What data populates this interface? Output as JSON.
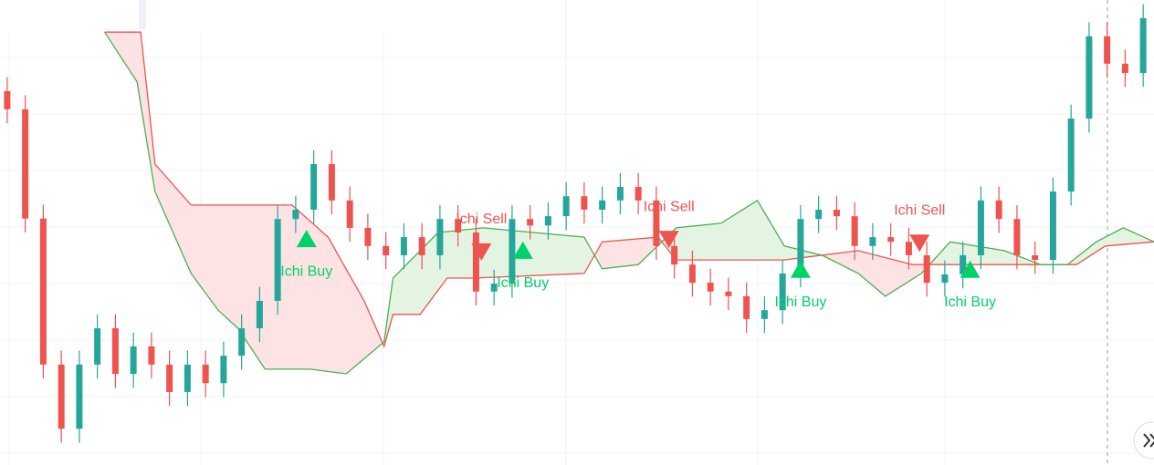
{
  "chart_data": {
    "type": "candlestick",
    "xlim": [
      -0.4,
      63.6
    ],
    "ylim": [
      0,
      100
    ],
    "up_color": "#26a69a",
    "down_color": "#ef5350",
    "open": [
      80.4,
      76.5,
      53,
      21.6,
      7.8,
      21.6,
      29.4,
      19.6,
      25.5,
      21.6,
      15.7,
      21.6,
      17.6,
      23.5,
      29.4,
      35.3,
      52.9,
      54.9,
      64.7,
      56.9,
      51,
      47.1,
      45.1,
      49,
      45.1,
      52.9,
      50,
      37.3,
      39,
      52.9,
      51.5,
      53.5,
      57.8,
      54.9,
      56.9,
      59.8,
      56.9,
      47.1,
      43.1,
      39.2,
      37.3,
      36.3,
      31.4,
      33.3,
      41.2,
      52.9,
      54.9,
      53.5,
      47.1,
      49,
      48,
      45.1,
      39.2,
      41,
      45.1,
      56.9,
      52.9,
      45.1,
      44.1,
      58.8,
      74.5,
      92.2,
      86.3,
      84.3
    ],
    "high": [
      83.4,
      79.5,
      56,
      24.6,
      24.6,
      32.4,
      32.4,
      28.5,
      28.5,
      24.6,
      24.6,
      24.6,
      26.5,
      32.4,
      38.3,
      55.9,
      57.9,
      67.7,
      67.7,
      59.9,
      54,
      50.1,
      52,
      52,
      55.9,
      55.9,
      53,
      42,
      55.9,
      55.9,
      56.5,
      60.8,
      60.8,
      59.9,
      62.8,
      62.8,
      59.9,
      50.1,
      46.1,
      42.2,
      40.3,
      39.3,
      36.3,
      44.2,
      55.9,
      57.9,
      57.9,
      56.5,
      52,
      52,
      51,
      48.1,
      44,
      48.1,
      59.9,
      59.9,
      55.9,
      48.1,
      61.8,
      77.5,
      95.2,
      95.2,
      89.3,
      99.1
    ],
    "low": [
      73.5,
      50,
      18.6,
      4.8,
      4.8,
      18.6,
      16.6,
      16.6,
      18.6,
      12.7,
      12.7,
      14.6,
      14.6,
      20.5,
      26.4,
      32.3,
      49.9,
      51.9,
      53.9,
      48,
      44.1,
      42.1,
      42.1,
      42.1,
      42.1,
      47,
      34.3,
      34.3,
      36,
      48.5,
      48.5,
      50.5,
      51.9,
      51.9,
      53.9,
      53.9,
      44.1,
      40.1,
      36.2,
      34.3,
      33.3,
      28.4,
      28.4,
      30.3,
      38.2,
      49.9,
      50.5,
      44.1,
      44.1,
      45,
      42.1,
      36.2,
      36.2,
      38,
      42.1,
      49.9,
      42.1,
      41.1,
      41.1,
      55.8,
      71.5,
      83.3,
      81.3,
      81.3
    ],
    "close": [
      76.5,
      53,
      21.6,
      7.8,
      21.6,
      29.4,
      19.6,
      25.5,
      21.6,
      15.7,
      21.6,
      17.6,
      23.5,
      29.4,
      35.3,
      52.9,
      54.9,
      64.7,
      56.9,
      51,
      47.1,
      45.1,
      49,
      45.1,
      52.9,
      50,
      37.3,
      39,
      52.9,
      51.5,
      53.5,
      57.8,
      54.9,
      56.9,
      59.8,
      56.9,
      47.1,
      43.1,
      39.2,
      37.3,
      36.3,
      31.4,
      33.3,
      41.2,
      52.9,
      54.9,
      53.5,
      47.1,
      49,
      48,
      45.1,
      39.2,
      41,
      45.1,
      56.9,
      52.9,
      45.1,
      44.1,
      58.8,
      74.5,
      92.2,
      86.3,
      84.3,
      96.1
    ],
    "cloud": {
      "pink": "#fde3e3",
      "green": "#e3f4e3",
      "upper": {
        "color": "#ef5350",
        "x": [
          5.4,
          7.4,
          8.2,
          10.2,
          15.8,
          17.8,
          19.8,
          20.9,
          21.4,
          22.9,
          24.4,
          25.9,
          32,
          33,
          36.1,
          37.1,
          43.1,
          47.2,
          50.2,
          59.3,
          60.9,
          63.6
        ],
        "values": [
          93.1,
          93.1,
          64.7,
          55.9,
          55.9,
          49,
          35.3,
          25.5,
          32.4,
          32.4,
          40.2,
          40.2,
          41.2,
          48,
          49,
          44.1,
          44.1,
          46.1,
          43.1,
          43.1,
          47.1,
          48
        ]
      },
      "lower": {
        "color": "#4caf50",
        "x": [
          5.4,
          7.2,
          8.2,
          10.2,
          11.7,
          12.8,
          14.3,
          16.8,
          18.8,
          20.9,
          21.4,
          23.9,
          26.4,
          32,
          33,
          35,
          37.1,
          39.6,
          41.6,
          43.1,
          45.2,
          47.2,
          48.7,
          50.7,
          52.3,
          55.3,
          57.3,
          58.8,
          60.4,
          61.9,
          63.6
        ],
        "values": [
          93.1,
          82.4,
          58.8,
          41.2,
          33.3,
          29.4,
          20.6,
          20.6,
          19.6,
          26.5,
          40.2,
          50,
          51,
          49,
          42.2,
          43.1,
          51,
          52,
          56.9,
          47.1,
          45.1,
          41.2,
          36.3,
          41.2,
          48,
          46.1,
          43.1,
          43.1,
          48,
          51,
          48
        ]
      }
    },
    "signals": [
      {
        "label": "Ichi Buy",
        "color": "#00d26a",
        "x": 16.6,
        "y": 48.6
      },
      {
        "label": "Ichi Sell",
        "color": "#ef5350",
        "x": 26.3,
        "y": 45.9
      },
      {
        "label": "Ichi Buy",
        "color": "#00d26a",
        "x": 28.6,
        "y": 46.1
      },
      {
        "label": "Ichi Sell",
        "color": "#ef5350",
        "x": 36.7,
        "y": 48.6
      },
      {
        "label": "Ichi Buy",
        "color": "#00d26a",
        "x": 44,
        "y": 42
      },
      {
        "label": "Ichi Sell",
        "color": "#ef5350",
        "x": 50.6,
        "y": 47.8
      },
      {
        "label": "Ichi Buy",
        "color": "#00d26a",
        "x": 53.4,
        "y": 42
      }
    ]
  }
}
